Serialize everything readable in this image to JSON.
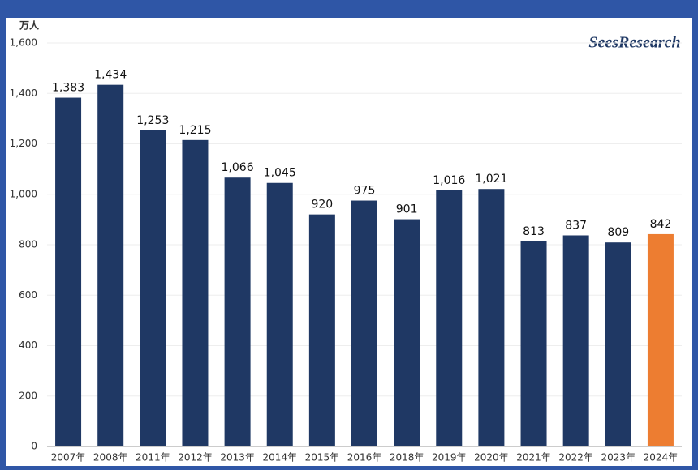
{
  "chart_data": {
    "type": "bar",
    "unit_label": "万人",
    "logo": "SeesResearch",
    "categories": [
      "2007年",
      "2008年",
      "2011年",
      "2012年",
      "2013年",
      "2014年",
      "2015年",
      "2016年",
      "2018年",
      "2019年",
      "2020年",
      "2021年",
      "2022年",
      "2023年",
      "2024年"
    ],
    "values": [
      1383,
      1434,
      1253,
      1215,
      1066,
      1045,
      920,
      975,
      901,
      1016,
      1021,
      813,
      837,
      809,
      842
    ],
    "value_labels": [
      "1,383",
      "1,434",
      "1,253",
      "1,215",
      "1,066",
      "1,045",
      "920",
      "975",
      "901",
      "1,016",
      "1,021",
      "813",
      "837",
      "809",
      "842"
    ],
    "colors": [
      "#1f3864",
      "#1f3864",
      "#1f3864",
      "#1f3864",
      "#1f3864",
      "#1f3864",
      "#1f3864",
      "#1f3864",
      "#1f3864",
      "#1f3864",
      "#1f3864",
      "#1f3864",
      "#1f3864",
      "#1f3864",
      "#ed7d31"
    ],
    "ylim": [
      0,
      1600
    ],
    "yticks": [
      0,
      200,
      400,
      600,
      800,
      {
        "value": 1000,
        "label": "1,000"
      },
      {
        "value": 1200,
        "label": "1,200"
      },
      {
        "value": 1400,
        "label": "1,400"
      },
      {
        "value": 1600,
        "label": "1,600"
      }
    ],
    "grid": true
  }
}
